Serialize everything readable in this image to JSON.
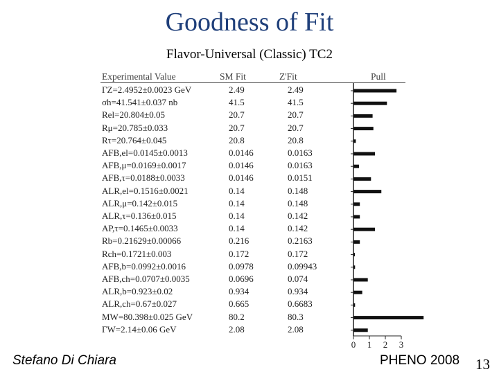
{
  "slide": {
    "title": "Goodness of Fit",
    "subtitle": "Flavor-Universal (Classic) TC2",
    "author": "Stefano Di Chiara",
    "event": "PHENO 2008",
    "page_number": "13"
  },
  "chart_data": {
    "type": "bar",
    "headers": {
      "experimental": "Experimental Value",
      "sm_fit": "SM Fit",
      "zprime_fit": "Z'Fit",
      "pull": "Pull"
    },
    "rows": [
      {
        "experimental": "ΓZ=2.4952±0.0023 GeV",
        "sm": "2.49",
        "zp": "2.49",
        "pull": 2.7
      },
      {
        "experimental": "σh=41.541±0.037 nb",
        "sm": "41.5",
        "zp": "41.5",
        "pull": 2.1
      },
      {
        "experimental": "Rel=20.804±0.05",
        "sm": "20.7",
        "zp": "20.7",
        "pull": 1.2
      },
      {
        "experimental": "Rμ=20.785±0.033",
        "sm": "20.7",
        "zp": "20.7",
        "pull": 1.25
      },
      {
        "experimental": "Rτ=20.764±0.045",
        "sm": "20.8",
        "zp": "20.8",
        "pull": 0.15
      },
      {
        "experimental": "AFB,el=0.0145±0.0013",
        "sm": "0.0146",
        "zp": "0.0163",
        "pull": 1.35
      },
      {
        "experimental": "AFB,μ=0.0169±0.0017",
        "sm": "0.0146",
        "zp": "0.0163",
        "pull": 0.35
      },
      {
        "experimental": "AFB,τ=0.0188±0.0033",
        "sm": "0.0146",
        "zp": "0.0151",
        "pull": 1.1
      },
      {
        "experimental": "ALR,el=0.1516±0.0021",
        "sm": "0.14",
        "zp": "0.148",
        "pull": 1.75
      },
      {
        "experimental": "ALR,μ=0.142±0.015",
        "sm": "0.14",
        "zp": "0.148",
        "pull": 0.4
      },
      {
        "experimental": "ALR,τ=0.136±0.015",
        "sm": "0.14",
        "zp": "0.142",
        "pull": 0.4
      },
      {
        "experimental": "AP,τ=0.1465±0.0033",
        "sm": "0.14",
        "zp": "0.142",
        "pull": 1.35
      },
      {
        "experimental": "Rb=0.21629±0.00066",
        "sm": "0.216",
        "zp": "0.2163",
        "pull": 0.4
      },
      {
        "experimental": "Rch=0.1721±0.003",
        "sm": "0.172",
        "zp": "0.172",
        "pull": 0.05
      },
      {
        "experimental": "AFB,b=0.0992±0.0016",
        "sm": "0.0978",
        "zp": "0.09943",
        "pull": 0.1
      },
      {
        "experimental": "AFB,ch=0.0707±0.0035",
        "sm": "0.0696",
        "zp": "0.074",
        "pull": 0.9
      },
      {
        "experimental": "ALR,b=0.923±0.02",
        "sm": "0.934",
        "zp": "0.934",
        "pull": 0.55
      },
      {
        "experimental": "ALR,ch=0.67±0.027",
        "sm": "0.665",
        "zp": "0.6683",
        "pull": 0.1
      },
      {
        "experimental": "MW=80.398±0.025 GeV",
        "sm": "80.2",
        "zp": "80.3",
        "pull": 4.4
      },
      {
        "experimental": "ΓW=2.14±0.06 GeV",
        "sm": "2.08",
        "zp": "2.08",
        "pull": 0.9
      }
    ],
    "axis": {
      "ticks": [
        "0",
        "1",
        "2",
        "3"
      ],
      "xlim": [
        0,
        3
      ]
    }
  }
}
